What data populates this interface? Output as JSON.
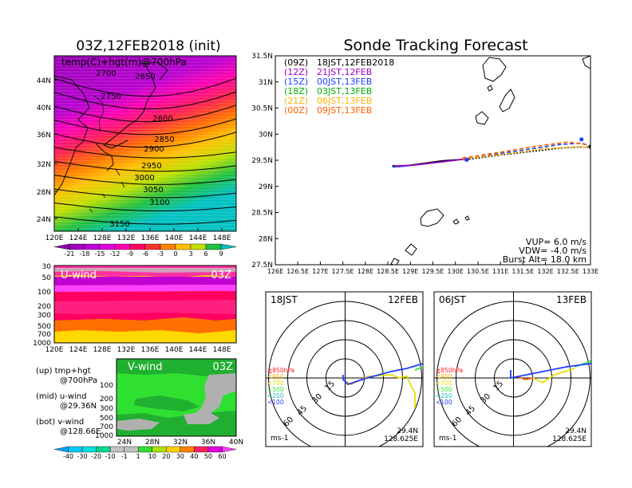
{
  "left": {
    "init_title": "03Z,12FEB2018 (init)",
    "map_label": "temp(C)+hgt(m)@700hPa",
    "lat_ticks": [
      "44N",
      "40N",
      "36N",
      "32N",
      "28N",
      "24N"
    ],
    "lon_ticks": [
      "120E",
      "124E",
      "128E",
      "132E",
      "136E",
      "140E",
      "144E",
      "148E"
    ],
    "contours": [
      {
        "label": "2650",
        "lvl": 2650
      },
      {
        "label": "2700",
        "lvl": 2700
      },
      {
        "label": "2750",
        "lvl": 2750
      },
      {
        "label": "2800",
        "lvl": 2800
      },
      {
        "label": "2850",
        "lvl": 2850
      },
      {
        "label": "2900",
        "lvl": 2900
      },
      {
        "label": "2950",
        "lvl": 2950
      },
      {
        "label": "3000",
        "lvl": 3000
      },
      {
        "label": "3050",
        "lvl": 3050
      },
      {
        "label": "3100",
        "lvl": 3100
      },
      {
        "label": "3150",
        "lvl": 3150
      }
    ],
    "temp_colorbar": {
      "labels": [
        "-21",
        "-18",
        "-15",
        "-12",
        "-9",
        "-6",
        "-3",
        "0",
        "3",
        "6",
        "9"
      ],
      "colors": [
        "#8a00a8",
        "#a000c0",
        "#c000d8",
        "#e000e0",
        "#ff00b0",
        "#ff0060",
        "#ff3030",
        "#ff8000",
        "#ffc000",
        "#c0e000",
        "#20c040",
        "#00c0c0"
      ]
    },
    "uwind": {
      "title": "U-wind",
      "time": "03Z",
      "p_ticks": [
        "30",
        "50",
        "100",
        "200",
        "300",
        "500",
        "700",
        "1000"
      ],
      "lon_ticks": [
        "120E",
        "124E",
        "128E",
        "132E",
        "136E",
        "140E",
        "144E",
        "148E"
      ]
    },
    "vwind": {
      "title": "V-wind",
      "time": "03Z",
      "p_ticks": [
        "100",
        "200",
        "300",
        "500",
        "700",
        "1000"
      ],
      "lat_ticks": [
        "24N",
        "28N",
        "32N",
        "36N",
        "40N"
      ]
    },
    "legend": [
      {
        "a": "(up) tmp+hgt",
        "b": "@700hPa"
      },
      {
        "a": "(mid) u-wind",
        "b": "@29.36N"
      },
      {
        "a": "(bot) v-wind",
        "b": "@128.66E"
      }
    ],
    "wind_colorbar": {
      "labels": [
        "-40",
        "-30",
        "-20",
        "-10",
        "-1",
        "1",
        "10",
        "20",
        "30",
        "40",
        "50",
        "60"
      ],
      "colors": [
        "#00a0ff",
        "#00c8ff",
        "#00e0e0",
        "#00d890",
        "#c0c0c0",
        "#c0c0c0",
        "#30e030",
        "#b0e000",
        "#ffd000",
        "#ff8000",
        "#ff2060",
        "#e000e0",
        "#ff40ff"
      ]
    }
  },
  "chart_data": {
    "type": "line",
    "title": "Sonde Tracking Forecast",
    "x_ticks": [
      "126E",
      "126.5E",
      "127E",
      "127.5E",
      "128E",
      "128.5E",
      "129E",
      "129.5E",
      "130E",
      "130.5E",
      "131E",
      "131.5E",
      "132E",
      "132.5E",
      "133E"
    ],
    "y_ticks": [
      "31.5N",
      "31N",
      "30.5N",
      "30N",
      "29.5N",
      "29N",
      "28.5N",
      "28N",
      "27.5N"
    ],
    "xlim": [
      126,
      133
    ],
    "ylim": [
      27.5,
      31.5
    ],
    "launches": [
      {
        "utc": "(09Z)",
        "jst": "18JST,12FEB2018",
        "color": "#000000"
      },
      {
        "utc": "(12Z)",
        "jst": "21JST,12FEB",
        "color": "#a000c0"
      },
      {
        "utc": "(15Z)",
        "jst": "00JST,13FEB",
        "color": "#2040ff"
      },
      {
        "utc": "(18Z)",
        "jst": "03JST,13FEB",
        "color": "#00b000"
      },
      {
        "utc": "(21Z)",
        "jst": "06JST,13FEB",
        "color": "#ffb000"
      },
      {
        "utc": "(00Z)",
        "jst": "09JST,13FEB",
        "color": "#ff6000"
      }
    ],
    "series": [
      {
        "color": "#000000",
        "dash": "",
        "x": [
          128.6,
          128.75,
          129.2,
          129.7,
          130.2,
          130.3
        ],
        "y": [
          29.4,
          29.38,
          29.43,
          29.49,
          29.52,
          29.53
        ]
      },
      {
        "color": "#000000",
        "dash": "2,2",
        "x": [
          130.3,
          131.0,
          131.7,
          132.3,
          132.7,
          133.0
        ],
        "y": [
          29.52,
          29.6,
          29.67,
          29.73,
          29.75,
          29.75
        ]
      },
      {
        "color": "#2040ff",
        "dash": "",
        "x": [
          128.6,
          128.9,
          129.5,
          130.0,
          130.3
        ],
        "y": [
          29.37,
          29.39,
          29.45,
          29.5,
          29.54
        ]
      },
      {
        "color": "#2040ff",
        "dash": "5,3",
        "x": [
          130.3,
          131.0,
          131.7,
          132.3,
          132.8,
          133.0
        ],
        "y": [
          29.55,
          29.63,
          29.72,
          29.8,
          29.83,
          29.77
        ]
      },
      {
        "color": "#a000c0",
        "dash": "",
        "x": [
          128.65,
          129.1,
          129.7,
          130.3
        ],
        "y": [
          29.39,
          29.41,
          29.47,
          29.53
        ]
      },
      {
        "color": "#ff6000",
        "dash": "5,3",
        "x": [
          130.3,
          131.1,
          131.8,
          132.5,
          132.9,
          133.0
        ],
        "y": [
          29.56,
          29.67,
          29.77,
          29.85,
          29.8,
          29.76
        ]
      },
      {
        "color": "#ffb000",
        "dash": "5,3",
        "x": [
          130.3,
          131.2,
          132.0,
          132.7,
          133.0
        ],
        "y": [
          29.54,
          29.63,
          29.72,
          29.76,
          29.74
        ]
      }
    ],
    "markers": [
      {
        "x": 130.2,
        "y": 29.53,
        "color": "#ff6000"
      },
      {
        "x": 130.25,
        "y": 29.51,
        "color": "#2040ff"
      },
      {
        "x": 132.8,
        "y": 29.9,
        "color": "#2040ff"
      },
      {
        "x": 133.0,
        "y": 29.76,
        "color": "#000000"
      }
    ],
    "params": {
      "vup": "VUP= 6.0 m/s",
      "vdw": "VDW= -4.0 m/s",
      "burst": "Burst Alt= 18.0 km"
    }
  },
  "hodographs": [
    {
      "time": "18JST",
      "date": "12FEB",
      "lat": "29.4N",
      "lon": "128.625E",
      "units": "ms-1",
      "ring_labels": [
        "15",
        "30",
        "45",
        "60"
      ],
      "levels": [
        {
          "label": "≧850hPa",
          "color": "#ff2020"
        },
        {
          "label": "<850",
          "color": "#ffb000"
        },
        {
          "label": "<700",
          "color": "#e0e000"
        },
        {
          "label": "<500",
          "color": "#40e040"
        },
        {
          "label": "<250",
          "color": "#20c0c0"
        },
        {
          "label": "<100",
          "color": "#2040ff"
        }
      ]
    },
    {
      "time": "06JST",
      "date": "13FEB",
      "lat": "29.4N",
      "lon": "128.625E",
      "units": "ms-1",
      "ring_labels": [
        "15",
        "30",
        "45",
        "60"
      ],
      "levels": [
        {
          "label": "≧850hPa",
          "color": "#ff2020"
        },
        {
          "label": "<850",
          "color": "#ffb000"
        },
        {
          "label": "<700",
          "color": "#e0e000"
        },
        {
          "label": "<500",
          "color": "#40e040"
        },
        {
          "label": "<250",
          "color": "#20c0c0"
        },
        {
          "label": "<100",
          "color": "#2040ff"
        }
      ]
    }
  ]
}
